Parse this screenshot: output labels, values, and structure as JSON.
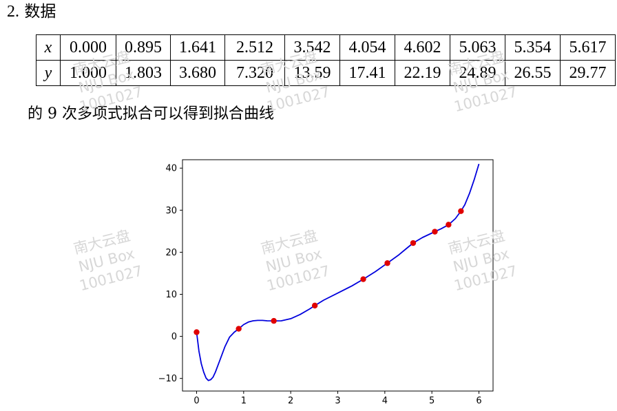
{
  "heading": {
    "number": "2.",
    "title": "数据"
  },
  "table": {
    "x_label": "x",
    "y_label": "y",
    "x": [
      "0.000",
      "0.895",
      "1.641",
      "2.512",
      "3.542",
      "4.054",
      "4.602",
      "5.063",
      "5.354",
      "5.617"
    ],
    "y": [
      "1.000",
      "1.803",
      "3.680",
      "7.320",
      "13.59",
      "17.41",
      "22.19",
      "24.89",
      "26.55",
      "29.77"
    ]
  },
  "caption": "的 9 次多项式拟合可以得到拟合曲线",
  "watermark": {
    "line1": "南大云盘",
    "line2": "NJU Box",
    "line3": "1001027"
  },
  "chart_data": {
    "type": "scatter",
    "title": "",
    "xlabel": "",
    "ylabel": "",
    "xlim": [
      -0.3,
      6.3
    ],
    "ylim": [
      -13,
      42
    ],
    "xticks": [
      0,
      1,
      2,
      3,
      4,
      5,
      6
    ],
    "yticks": [
      -10,
      0,
      10,
      20,
      30,
      40
    ],
    "grid": false,
    "series": [
      {
        "kind": "points",
        "color": "#e00000",
        "points": [
          [
            0.0,
            1.0
          ],
          [
            0.895,
            1.803
          ],
          [
            1.641,
            3.68
          ],
          [
            2.512,
            7.32
          ],
          [
            3.542,
            13.59
          ],
          [
            4.054,
            17.41
          ],
          [
            4.602,
            22.19
          ],
          [
            5.063,
            24.89
          ],
          [
            5.354,
            26.55
          ],
          [
            5.617,
            29.77
          ]
        ]
      },
      {
        "kind": "curve",
        "color": "#0000dd",
        "points": [
          [
            0.0,
            1.0
          ],
          [
            0.05,
            -3.5
          ],
          [
            0.1,
            -6.5
          ],
          [
            0.15,
            -8.5
          ],
          [
            0.2,
            -9.9
          ],
          [
            0.25,
            -10.5
          ],
          [
            0.3,
            -10.3
          ],
          [
            0.35,
            -9.7
          ],
          [
            0.4,
            -8.5
          ],
          [
            0.5,
            -5.5
          ],
          [
            0.6,
            -2.5
          ],
          [
            0.7,
            -0.2
          ],
          [
            0.8,
            1.0
          ],
          [
            0.895,
            1.803
          ],
          [
            1.0,
            2.8
          ],
          [
            1.1,
            3.4
          ],
          [
            1.2,
            3.7
          ],
          [
            1.3,
            3.8
          ],
          [
            1.4,
            3.8
          ],
          [
            1.5,
            3.7
          ],
          [
            1.641,
            3.68
          ],
          [
            1.8,
            3.7
          ],
          [
            2.0,
            4.2
          ],
          [
            2.2,
            5.2
          ],
          [
            2.4,
            6.5
          ],
          [
            2.512,
            7.32
          ],
          [
            2.7,
            8.6
          ],
          [
            3.0,
            10.3
          ],
          [
            3.3,
            12.0
          ],
          [
            3.542,
            13.59
          ],
          [
            3.8,
            15.4
          ],
          [
            4.054,
            17.41
          ],
          [
            4.3,
            19.4
          ],
          [
            4.45,
            20.8
          ],
          [
            4.602,
            22.19
          ],
          [
            4.8,
            23.5
          ],
          [
            5.063,
            24.89
          ],
          [
            5.2,
            25.6
          ],
          [
            5.354,
            26.55
          ],
          [
            5.5,
            28.0
          ],
          [
            5.617,
            29.77
          ],
          [
            5.7,
            31.3
          ],
          [
            5.8,
            34.0
          ],
          [
            5.9,
            37.3
          ],
          [
            6.0,
            41.0
          ]
        ]
      }
    ]
  }
}
